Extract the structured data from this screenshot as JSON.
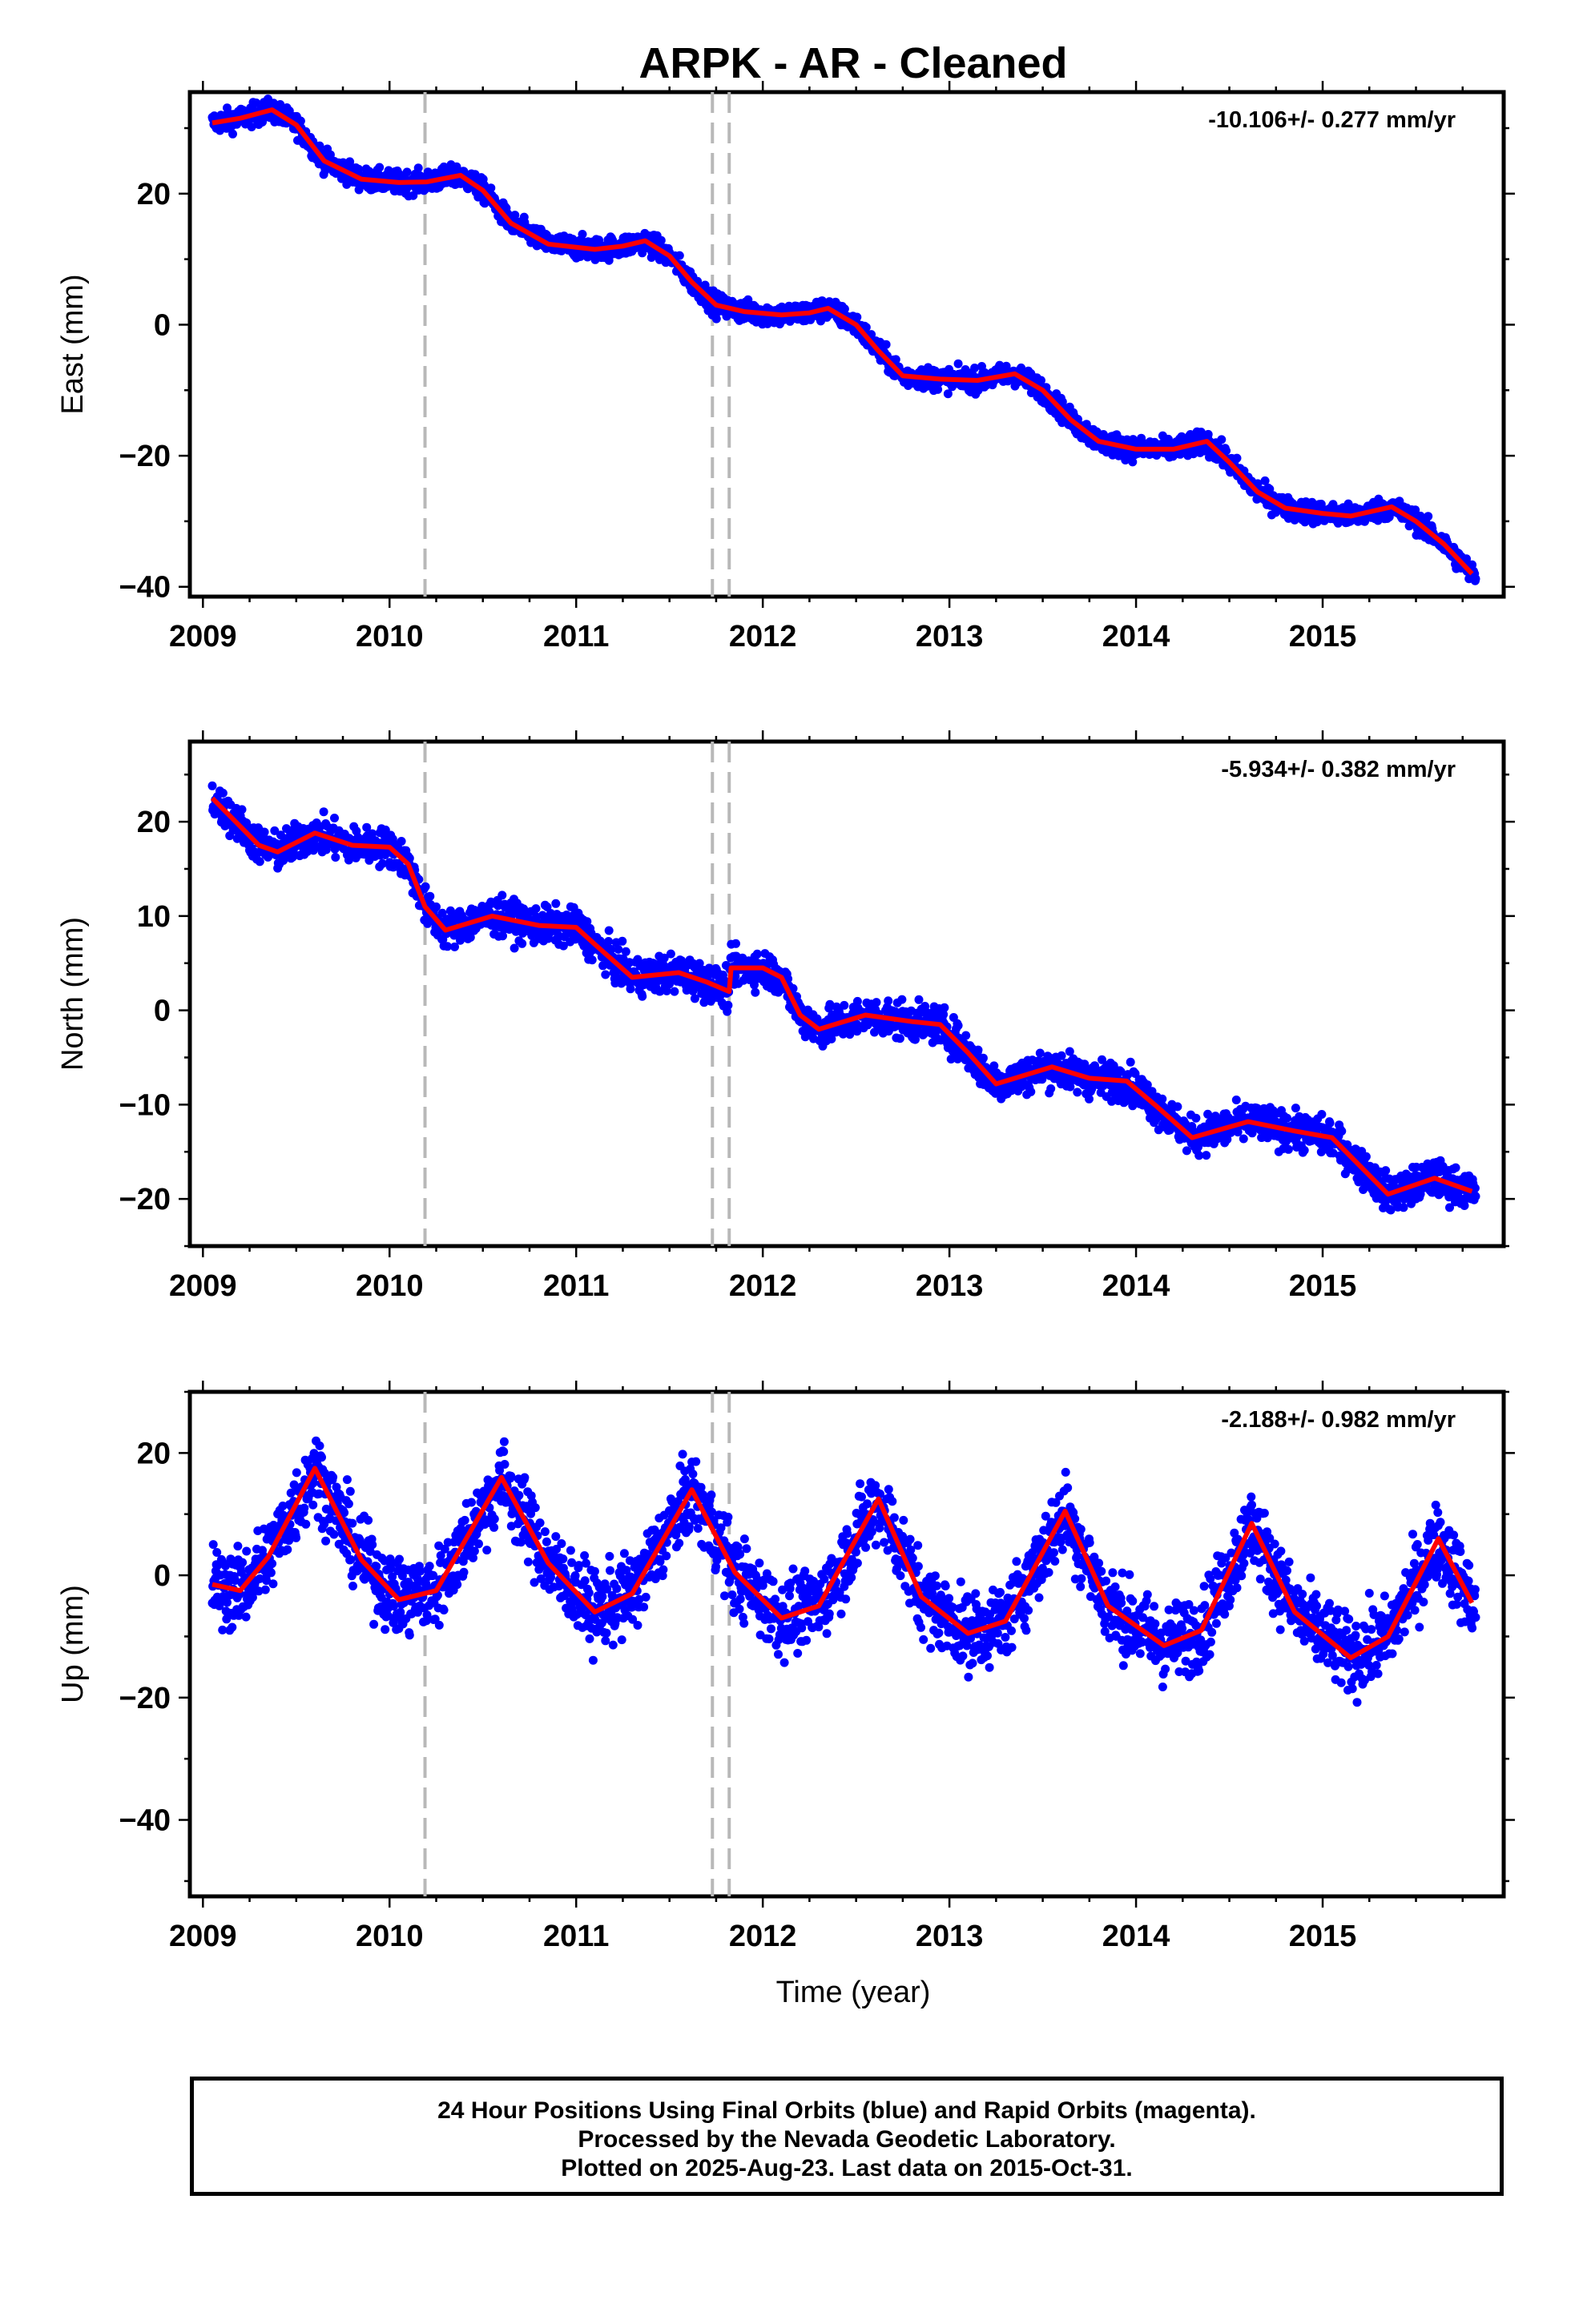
{
  "title": "ARPK  - AR - Cleaned",
  "xlabel": "Time (year)",
  "footer": {
    "line1": "24 Hour Positions Using Final Orbits (blue) and Rapid Orbits (magenta).",
    "line2": "Processed by the Nevada Geodetic Laboratory.",
    "line3": "Plotted on 2025-Aug-23. Last data on 2015-Oct-31."
  },
  "colors": {
    "final_orbit_points": "#0000ff",
    "model_line": "#ff0000",
    "event_lines": "#b8b8b8"
  },
  "chart_data": [
    {
      "type": "scatter",
      "xlabel": "",
      "ylabel": "East (mm)",
      "xlim": [
        2008.93,
        2015.97
      ],
      "ylim": [
        -41.5,
        35.5
      ],
      "x_ticks": [
        2009,
        2010,
        2011,
        2012,
        2013,
        2014,
        2015
      ],
      "y_ticks": [
        -40,
        -20,
        0,
        20
      ],
      "rate_label": "-10.106+/- 0.277 mm/yr",
      "event_lines": [
        2010.19,
        2011.73,
        2011.82
      ],
      "series": [
        {
          "values": [
            [
              2009.05,
              30.8
            ],
            [
              2009.2,
              31.5
            ],
            [
              2009.37,
              32.8
            ],
            [
              2009.5,
              30.5
            ],
            [
              2009.65,
              25.0
            ],
            [
              2009.85,
              22.2
            ],
            [
              2010.05,
              21.7
            ],
            [
              2010.2,
              21.8
            ],
            [
              2010.38,
              22.8
            ],
            [
              2010.5,
              20.5
            ],
            [
              2010.65,
              15.5
            ],
            [
              2010.85,
              12.3
            ],
            [
              2011.1,
              11.5
            ],
            [
              2011.25,
              12.0
            ],
            [
              2011.37,
              12.8
            ],
            [
              2011.5,
              10.5
            ],
            [
              2011.62,
              6.5
            ],
            [
              2011.75,
              3.0
            ],
            [
              2011.9,
              2.0
            ],
            [
              2012.1,
              1.5
            ],
            [
              2012.25,
              1.8
            ],
            [
              2012.35,
              2.5
            ],
            [
              2012.5,
              0.0
            ],
            [
              2012.62,
              -4.0
            ],
            [
              2012.75,
              -7.8
            ],
            [
              2012.95,
              -8.3
            ],
            [
              2013.15,
              -8.5
            ],
            [
              2013.35,
              -7.5
            ],
            [
              2013.5,
              -10.0
            ],
            [
              2013.65,
              -14.5
            ],
            [
              2013.8,
              -17.8
            ],
            [
              2014.0,
              -19.0
            ],
            [
              2014.2,
              -19.0
            ],
            [
              2014.38,
              -17.8
            ],
            [
              2014.5,
              -21.0
            ],
            [
              2014.65,
              -25.5
            ],
            [
              2014.8,
              -28.0
            ],
            [
              2015.0,
              -28.8
            ],
            [
              2015.15,
              -29.2
            ],
            [
              2015.37,
              -27.8
            ],
            [
              2015.5,
              -30.0
            ],
            [
              2015.65,
              -33.5
            ],
            [
              2015.8,
              -38.0
            ]
          ]
        }
      ]
    },
    {
      "type": "scatter",
      "xlabel": "",
      "ylabel": "North (mm)",
      "xlim": [
        2008.93,
        2015.97
      ],
      "ylim": [
        -25,
        28.5
      ],
      "x_ticks": [
        2009,
        2010,
        2011,
        2012,
        2013,
        2014,
        2015
      ],
      "y_ticks": [
        -20,
        -10,
        0,
        10,
        20
      ],
      "rate_label": "-5.934+/- 0.382 mm/yr",
      "event_lines": [
        2010.19,
        2011.73,
        2011.82
      ],
      "series": [
        {
          "values": [
            [
              2009.05,
              22.5
            ],
            [
              2009.15,
              20.5
            ],
            [
              2009.3,
              17.5
            ],
            [
              2009.4,
              16.8
            ],
            [
              2009.6,
              18.8
            ],
            [
              2009.8,
              17.5
            ],
            [
              2010.0,
              17.3
            ],
            [
              2010.1,
              15.5
            ],
            [
              2010.19,
              11.0
            ],
            [
              2010.3,
              8.5
            ],
            [
              2010.55,
              10.0
            ],
            [
              2010.8,
              9.0
            ],
            [
              2011.0,
              8.8
            ],
            [
              2011.1,
              7.0
            ],
            [
              2011.3,
              3.5
            ],
            [
              2011.55,
              4.0
            ],
            [
              2011.7,
              3.0
            ],
            [
              2011.82,
              2.0
            ],
            [
              2011.83,
              4.5
            ],
            [
              2012.0,
              4.5
            ],
            [
              2012.1,
              3.5
            ],
            [
              2012.2,
              -0.5
            ],
            [
              2012.3,
              -2.0
            ],
            [
              2012.55,
              -0.5
            ],
            [
              2012.8,
              -1.2
            ],
            [
              2012.95,
              -1.5
            ],
            [
              2013.1,
              -4.5
            ],
            [
              2013.25,
              -7.8
            ],
            [
              2013.55,
              -6.0
            ],
            [
              2013.75,
              -7.2
            ],
            [
              2013.95,
              -7.5
            ],
            [
              2014.1,
              -10.0
            ],
            [
              2014.3,
              -13.5
            ],
            [
              2014.6,
              -11.8
            ],
            [
              2014.85,
              -12.8
            ],
            [
              2015.05,
              -13.5
            ],
            [
              2015.2,
              -16.5
            ],
            [
              2015.35,
              -19.5
            ],
            [
              2015.6,
              -17.8
            ],
            [
              2015.8,
              -19.2
            ]
          ]
        }
      ]
    },
    {
      "type": "scatter",
      "xlabel": "Time (year)",
      "ylabel": "Up (mm)",
      "xlim": [
        2008.93,
        2015.97
      ],
      "ylim": [
        -52.5,
        30
      ],
      "x_ticks": [
        2009,
        2010,
        2011,
        2012,
        2013,
        2014,
        2015
      ],
      "y_ticks": [
        -40,
        -20,
        0,
        20
      ],
      "rate_label": "-2.188+/- 0.982 mm/yr",
      "event_lines": [
        2010.19,
        2011.73,
        2011.82
      ],
      "series": [
        {
          "values": [
            [
              2009.05,
              -1.5
            ],
            [
              2009.2,
              -2.5
            ],
            [
              2009.35,
              3.0
            ],
            [
              2009.6,
              17.5
            ],
            [
              2009.85,
              2.5
            ],
            [
              2010.05,
              -4.0
            ],
            [
              2010.25,
              -2.5
            ],
            [
              2010.6,
              16.0
            ],
            [
              2010.85,
              2.0
            ],
            [
              2011.1,
              -6.0
            ],
            [
              2011.3,
              -3.0
            ],
            [
              2011.62,
              14.0
            ],
            [
              2011.85,
              0.5
            ],
            [
              2012.1,
              -7.0
            ],
            [
              2012.3,
              -5.0
            ],
            [
              2012.62,
              12.5
            ],
            [
              2012.85,
              -3.5
            ],
            [
              2013.1,
              -9.5
            ],
            [
              2013.3,
              -7.5
            ],
            [
              2013.62,
              10.5
            ],
            [
              2013.85,
              -5.0
            ],
            [
              2014.15,
              -11.5
            ],
            [
              2014.35,
              -9.0
            ],
            [
              2014.62,
              8.5
            ],
            [
              2014.85,
              -6.0
            ],
            [
              2015.15,
              -13.5
            ],
            [
              2015.35,
              -10.0
            ],
            [
              2015.62,
              6.0
            ],
            [
              2015.8,
              -4.5
            ]
          ]
        }
      ]
    }
  ]
}
